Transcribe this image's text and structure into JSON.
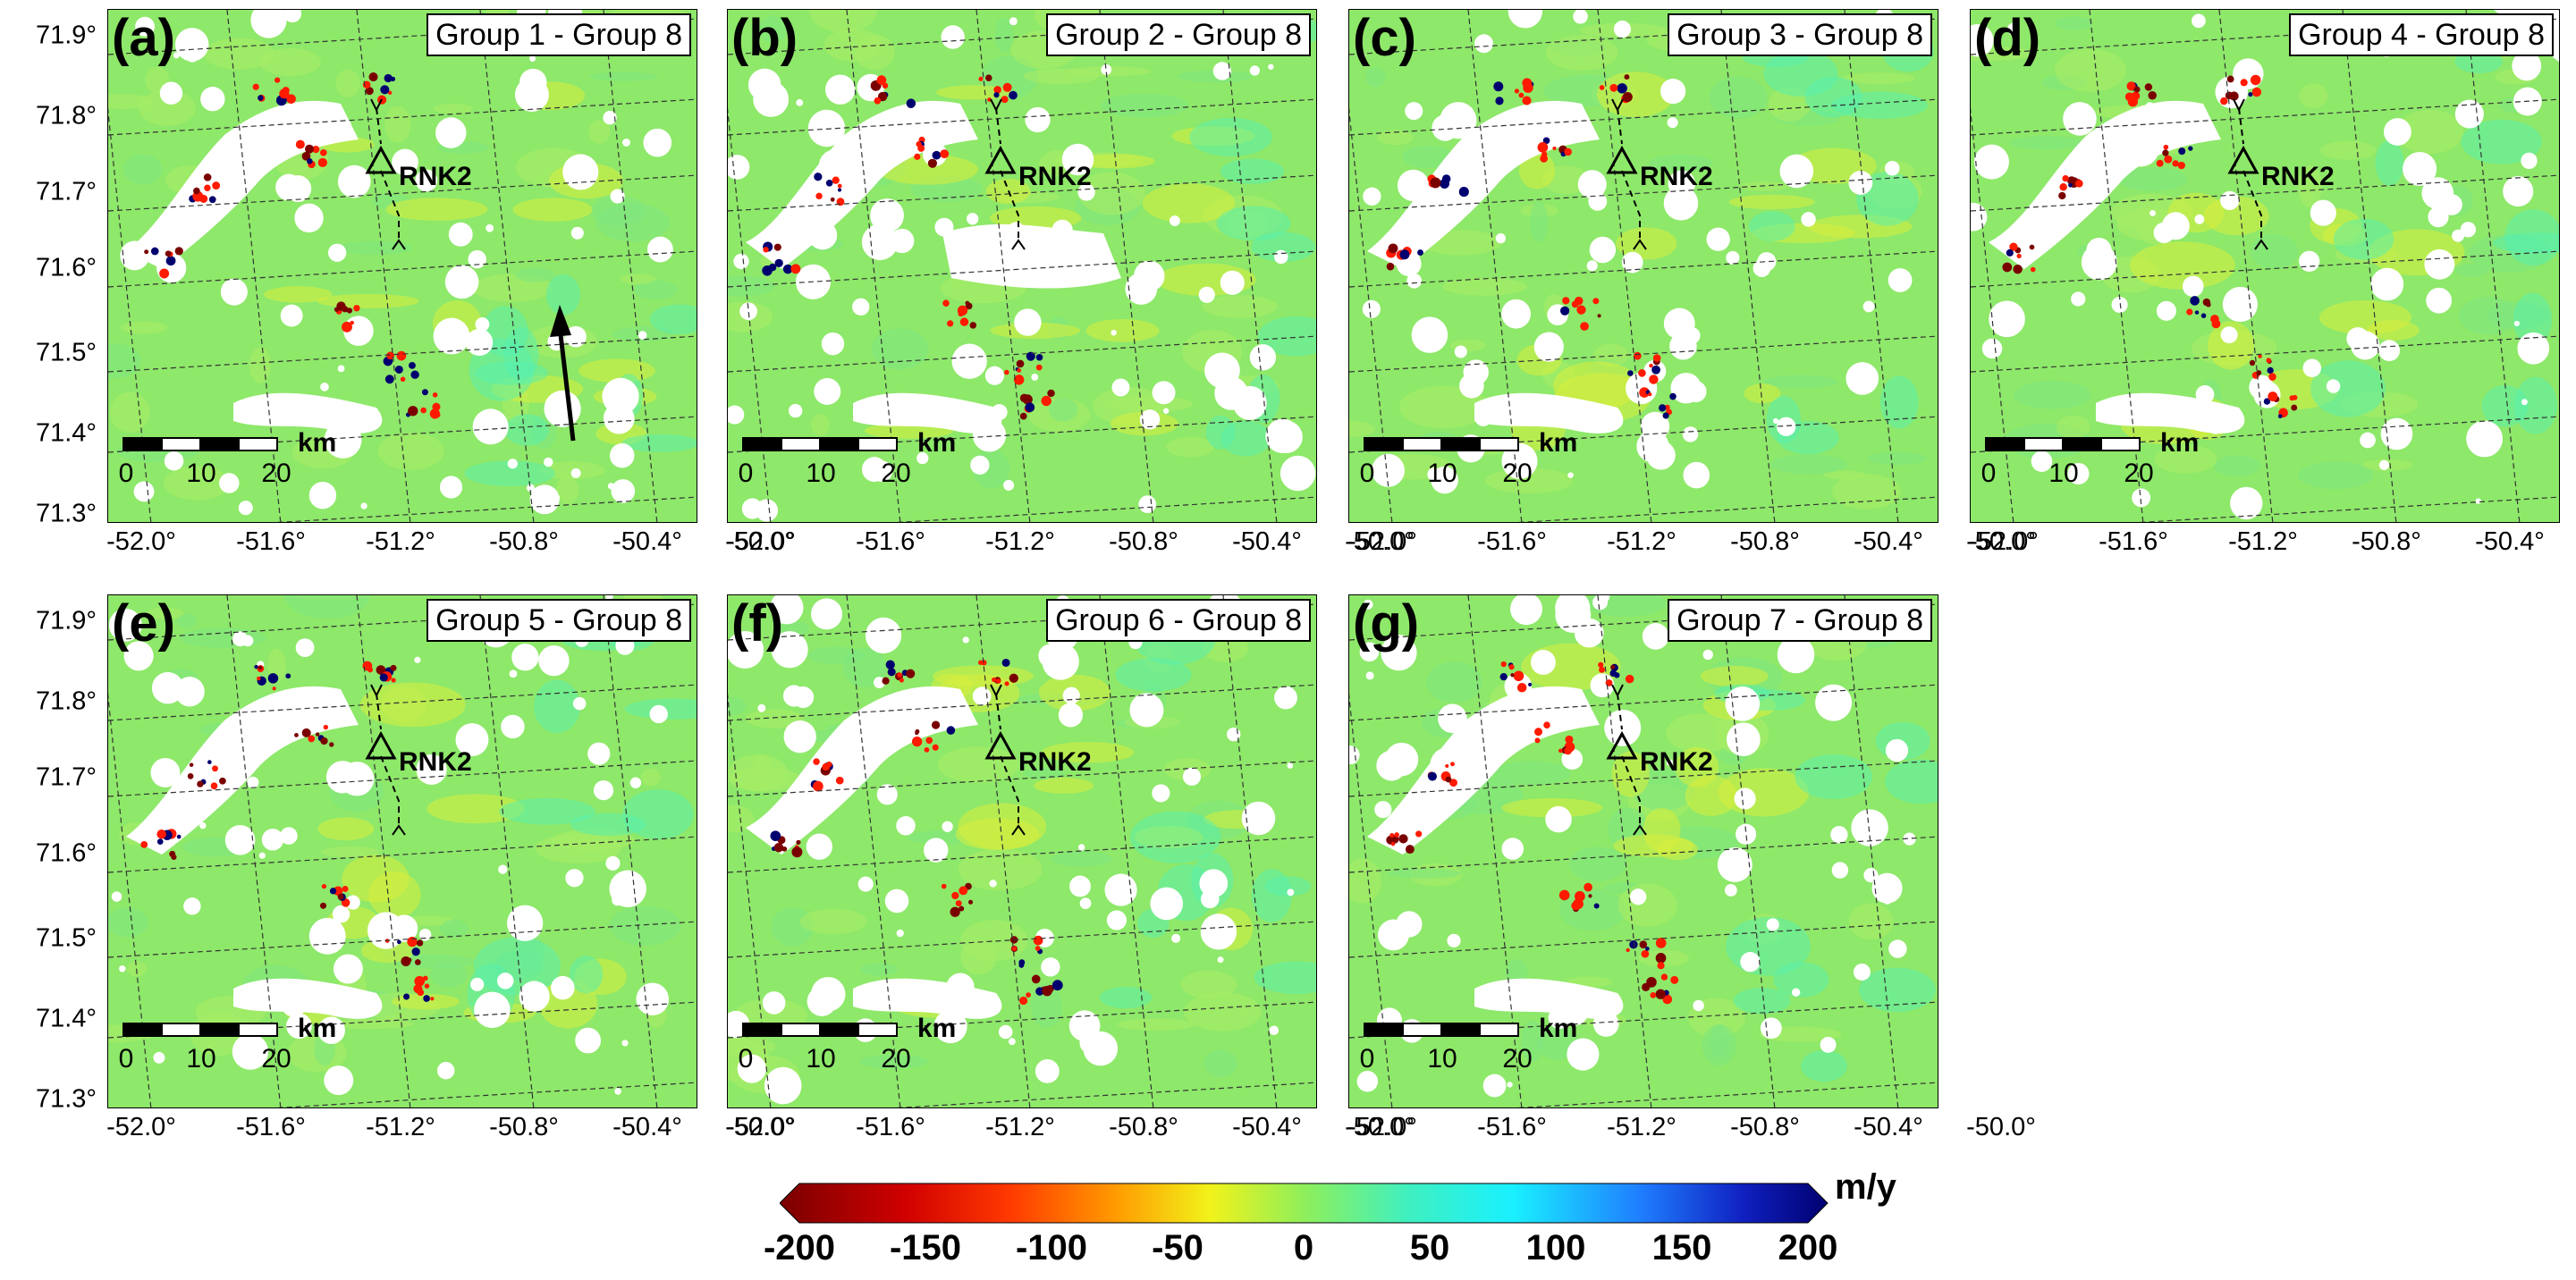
{
  "figure": {
    "panels": [
      {
        "id": "a",
        "label": "(a)",
        "title": "Group 1 - Group 8",
        "station": "RNK2",
        "has_arrow": true
      },
      {
        "id": "b",
        "label": "(b)",
        "title": "Group 2 - Group 8",
        "station": "RNK2",
        "has_arrow": false
      },
      {
        "id": "c",
        "label": "(c)",
        "title": "Group 3 - Group 8",
        "station": "RNK2",
        "has_arrow": false
      },
      {
        "id": "d",
        "label": "(d)",
        "title": "Group 4 - Group 8",
        "station": "RNK2",
        "has_arrow": false
      },
      {
        "id": "e",
        "label": "(e)",
        "title": "Group 5 - Group 8",
        "station": "RNK2",
        "has_arrow": false
      },
      {
        "id": "f",
        "label": "(f)",
        "title": "Group 6 - Group 8",
        "station": "RNK2",
        "has_arrow": false
      },
      {
        "id": "g",
        "label": "(g)",
        "title": "Group 7 - Group 8",
        "station": "RNK2",
        "has_arrow": false
      }
    ],
    "latitude_labels": [
      "71.9°",
      "71.8°",
      "71.7°",
      "71.6°",
      "71.5°",
      "71.4°",
      "71.3°"
    ],
    "longitude_labels": [
      "-52.0°",
      "-51.6°",
      "-51.2°",
      "-50.8°",
      "-50.4°",
      "-50.0°"
    ],
    "scale_bar": {
      "ticks": [
        "0",
        "10",
        "20"
      ],
      "unit": "km"
    },
    "colorbar": {
      "unit": "m/y",
      "min": -200,
      "max": 200,
      "ticks": [
        "-200",
        "-150",
        "-100",
        "-50",
        "0",
        "50",
        "100",
        "150",
        "200"
      ],
      "colors": {
        "dark_red": "#7a0000",
        "red": "#ff1a00",
        "orange": "#ff9a00",
        "yellow": "#f2f21a",
        "green": "#8fef5a",
        "teal": "#3ff0c0",
        "cyan": "#19f0ff",
        "blue": "#1f4fff",
        "navy": "#00006f"
      }
    },
    "colors": {
      "map_background": "#8ee86a",
      "no_data": "#ffffff",
      "grid": "#333333"
    }
  }
}
